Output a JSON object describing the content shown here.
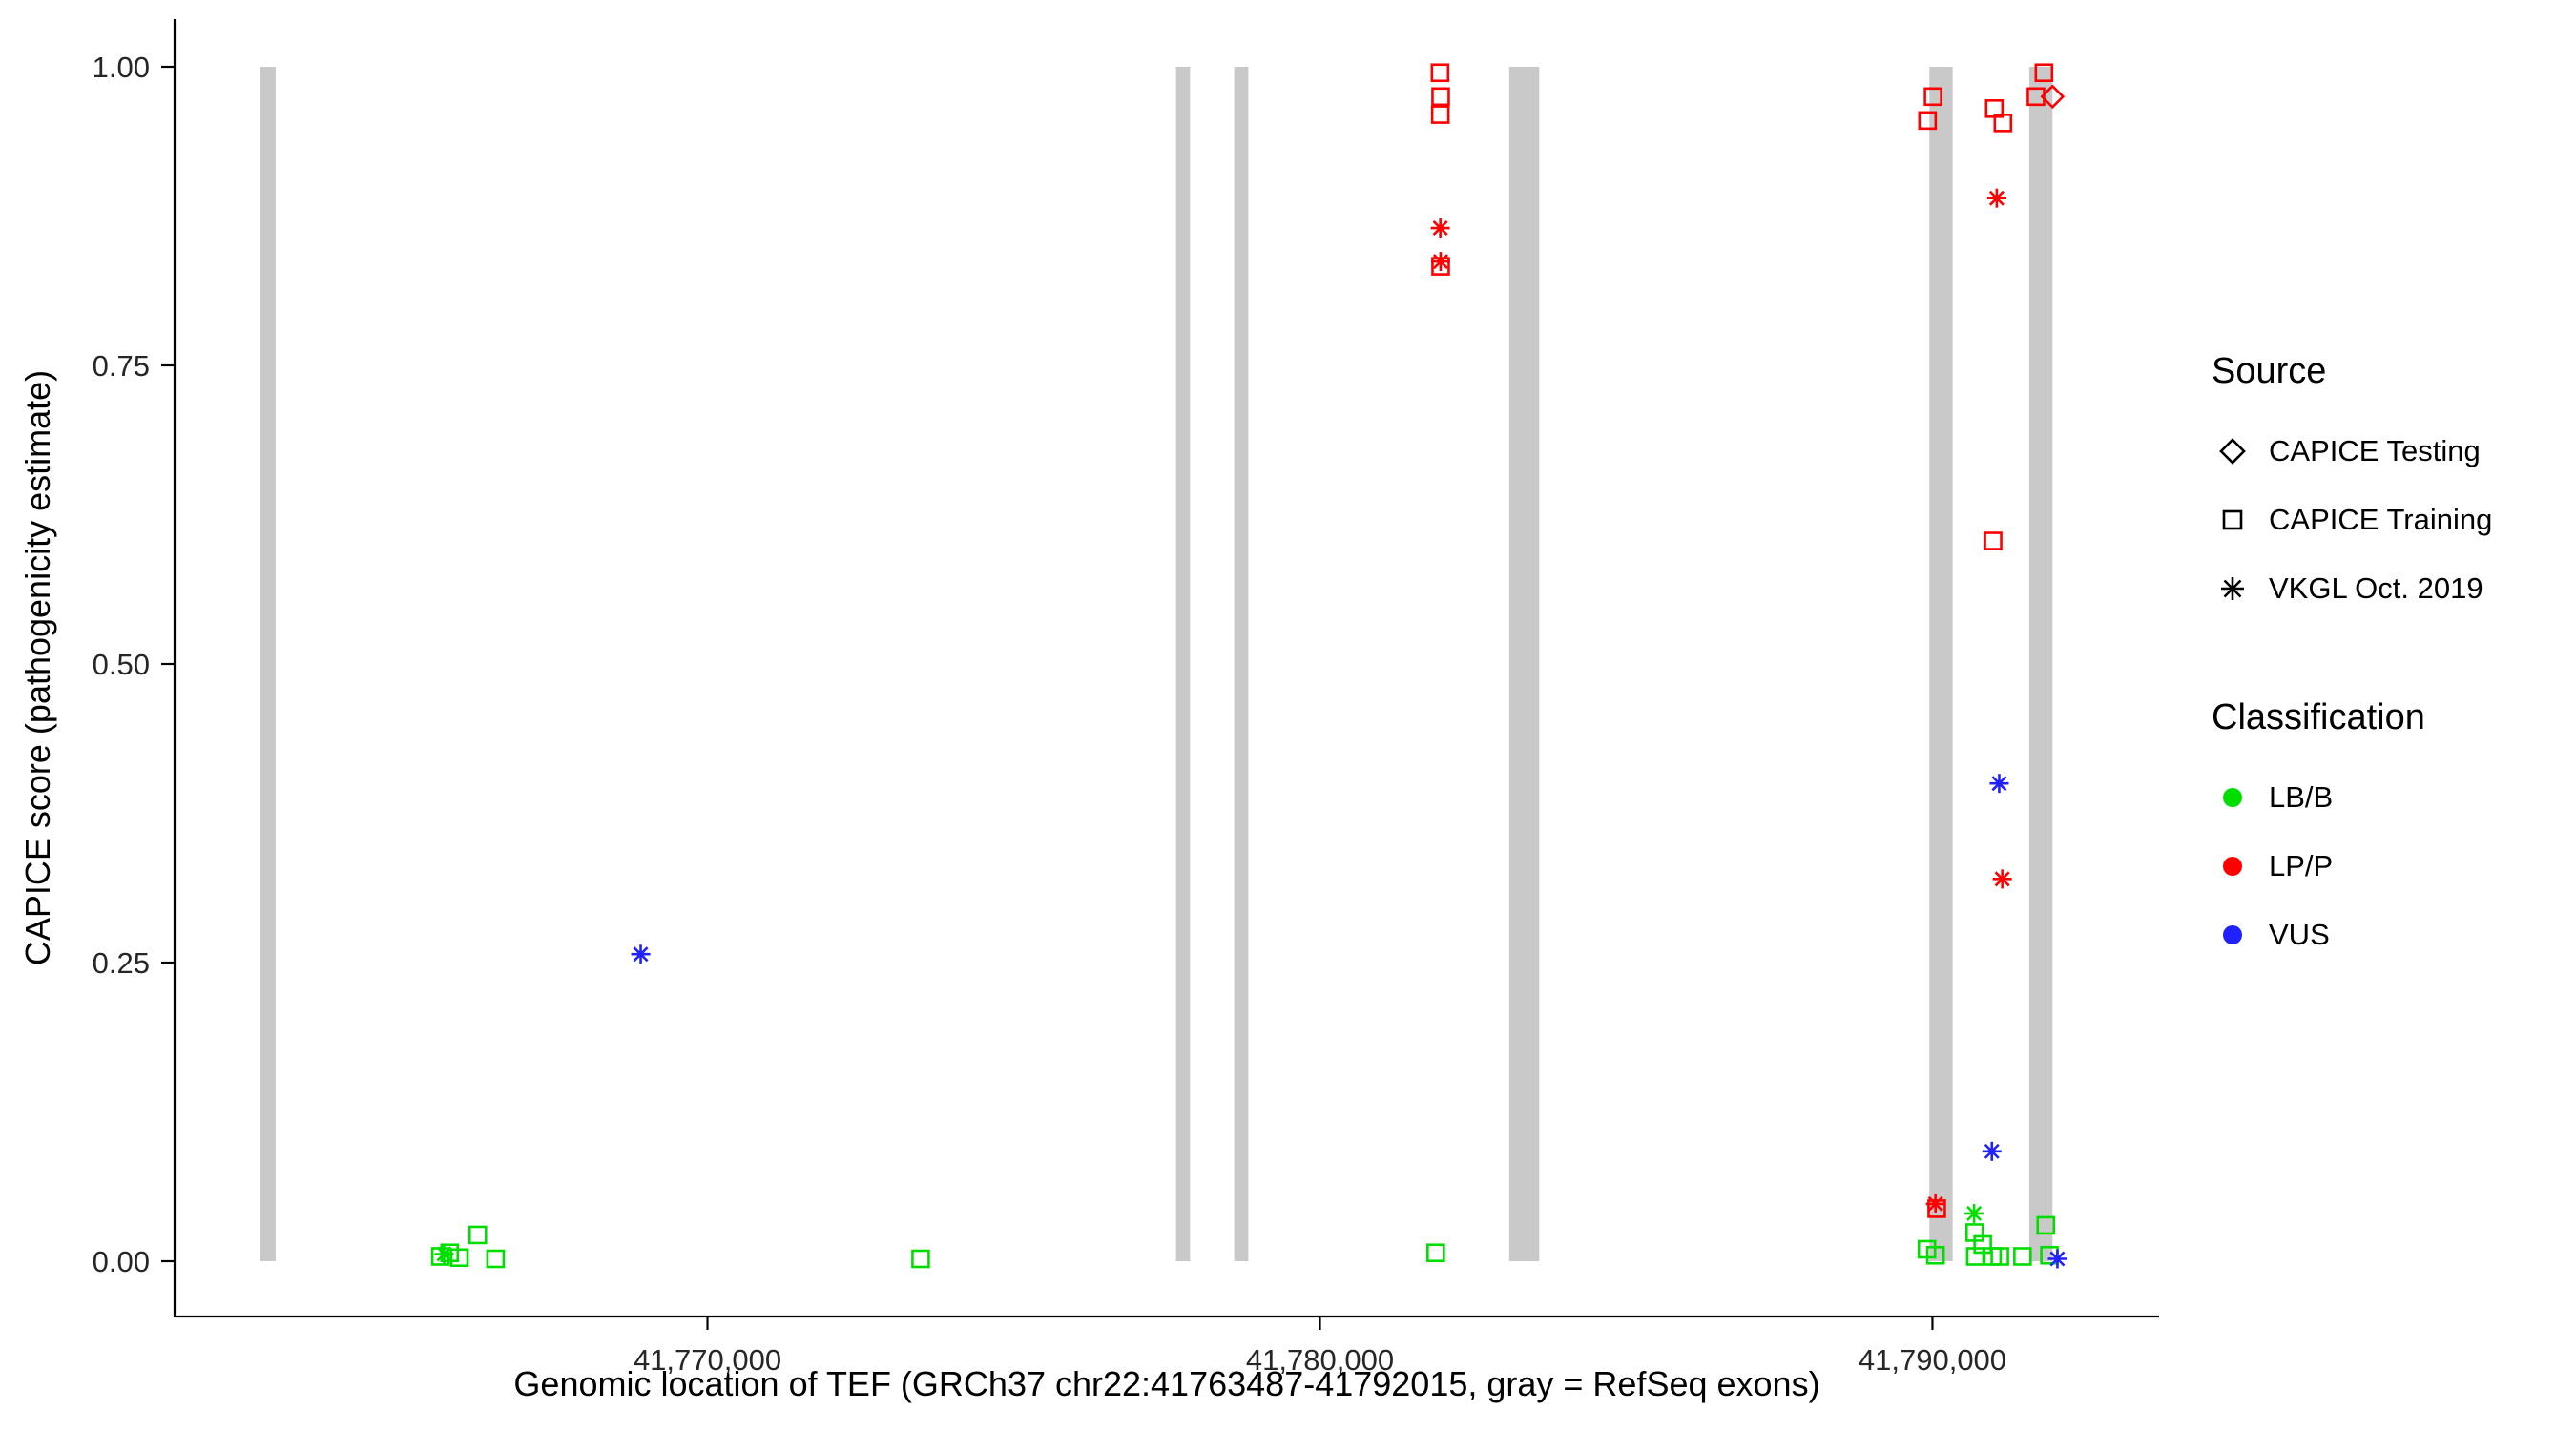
{
  "chart_data": {
    "type": "scatter",
    "title": "",
    "xlabel": "Genomic location of TEF (GRCh37 chr22:41763487-41792015, gray = RefSeq exons)",
    "ylabel": "CAPICE score (pathogenicity estimate)",
    "xlim": [
      41761300,
      41793700
    ],
    "ylim": [
      0,
      1.0
    ],
    "grid": false,
    "legend_position": "right",
    "x_ticks": [
      {
        "value": 41770000,
        "label": "41,770,000"
      },
      {
        "value": 41780000,
        "label": "41,780,000"
      },
      {
        "value": 41790000,
        "label": "41,790,000"
      }
    ],
    "y_ticks": [
      {
        "value": 0.0,
        "label": "0.00"
      },
      {
        "value": 0.25,
        "label": "0.25"
      },
      {
        "value": 0.5,
        "label": "0.50"
      },
      {
        "value": 0.75,
        "label": "0.75"
      },
      {
        "value": 1.0,
        "label": "1.00"
      }
    ],
    "exon_color": "#C9C9C9",
    "exons": [
      {
        "start": 41762700,
        "end": 41762950
      },
      {
        "start": 41777650,
        "end": 41777880
      },
      {
        "start": 41778600,
        "end": 41778830
      },
      {
        "start": 41783090,
        "end": 41783580
      },
      {
        "start": 41789950,
        "end": 41790330
      },
      {
        "start": 41791580,
        "end": 41791960
      }
    ],
    "colors": {
      "LB/B": "#00DE00",
      "LP/P": "#FF0000",
      "VUS": "#2121FF"
    },
    "points": [
      {
        "x": 41765640,
        "y": 0.004,
        "source": "CAPICE Training",
        "class": "LB/B"
      },
      {
        "x": 41765790,
        "y": 0.007,
        "source": "CAPICE Training",
        "class": "LB/B"
      },
      {
        "x": 41765700,
        "y": 0.006,
        "source": "VKGL Oct. 2019",
        "class": "LB/B"
      },
      {
        "x": 41765950,
        "y": 0.003,
        "source": "CAPICE Training",
        "class": "LB/B"
      },
      {
        "x": 41766250,
        "y": 0.022,
        "source": "CAPICE Training",
        "class": "LB/B"
      },
      {
        "x": 41766540,
        "y": 0.002,
        "source": "CAPICE Training",
        "class": "LB/B"
      },
      {
        "x": 41768910,
        "y": 0.257,
        "source": "VKGL Oct. 2019",
        "class": "VUS"
      },
      {
        "x": 41773480,
        "y": 0.002,
        "source": "CAPICE Training",
        "class": "LB/B"
      },
      {
        "x": 41781890,
        "y": 0.007,
        "source": "CAPICE Training",
        "class": "LB/B"
      },
      {
        "x": 41781960,
        "y": 0.995,
        "source": "CAPICE Training",
        "class": "LP/P"
      },
      {
        "x": 41781970,
        "y": 0.975,
        "source": "CAPICE Training",
        "class": "LP/P"
      },
      {
        "x": 41781965,
        "y": 0.96,
        "source": "CAPICE Training",
        "class": "LP/P"
      },
      {
        "x": 41781965,
        "y": 0.865,
        "source": "VKGL Oct. 2019",
        "class": "LP/P"
      },
      {
        "x": 41781970,
        "y": 0.837,
        "source": "VKGL Oct. 2019",
        "class": "LP/P"
      },
      {
        "x": 41781970,
        "y": 0.833,
        "source": "CAPICE Training",
        "class": "LP/P"
      },
      {
        "x": 41789920,
        "y": 0.955,
        "source": "CAPICE Training",
        "class": "LP/P"
      },
      {
        "x": 41790010,
        "y": 0.975,
        "source": "CAPICE Training",
        "class": "LP/P"
      },
      {
        "x": 41791010,
        "y": 0.965,
        "source": "CAPICE Training",
        "class": "LP/P"
      },
      {
        "x": 41791150,
        "y": 0.953,
        "source": "CAPICE Training",
        "class": "LP/P"
      },
      {
        "x": 41791690,
        "y": 0.975,
        "source": "CAPICE Training",
        "class": "LP/P"
      },
      {
        "x": 41791820,
        "y": 0.995,
        "source": "CAPICE Training",
        "class": "LP/P"
      },
      {
        "x": 41791960,
        "y": 0.975,
        "source": "CAPICE Testing",
        "class": "LP/P"
      },
      {
        "x": 41791050,
        "y": 0.89,
        "source": "VKGL Oct. 2019",
        "class": "LP/P"
      },
      {
        "x": 41790990,
        "y": 0.603,
        "source": "CAPICE Training",
        "class": "LP/P"
      },
      {
        "x": 41791090,
        "y": 0.4,
        "source": "VKGL Oct. 2019",
        "class": "VUS"
      },
      {
        "x": 41791140,
        "y": 0.32,
        "source": "VKGL Oct. 2019",
        "class": "LP/P"
      },
      {
        "x": 41790970,
        "y": 0.092,
        "source": "VKGL Oct. 2019",
        "class": "VUS"
      },
      {
        "x": 41790050,
        "y": 0.048,
        "source": "VKGL Oct. 2019",
        "class": "LP/P"
      },
      {
        "x": 41790070,
        "y": 0.044,
        "source": "CAPICE Training",
        "class": "LP/P"
      },
      {
        "x": 41790680,
        "y": 0.04,
        "source": "VKGL Oct. 2019",
        "class": "LB/B"
      },
      {
        "x": 41789910,
        "y": 0.01,
        "source": "CAPICE Training",
        "class": "LB/B"
      },
      {
        "x": 41790050,
        "y": 0.005,
        "source": "CAPICE Training",
        "class": "LB/B"
      },
      {
        "x": 41790690,
        "y": 0.024,
        "source": "CAPICE Training",
        "class": "LB/B"
      },
      {
        "x": 41790820,
        "y": 0.014,
        "source": "CAPICE Training",
        "class": "LB/B"
      },
      {
        "x": 41790700,
        "y": 0.004,
        "source": "CAPICE Training",
        "class": "LB/B"
      },
      {
        "x": 41790980,
        "y": 0.004,
        "source": "CAPICE Training",
        "class": "LB/B"
      },
      {
        "x": 41791100,
        "y": 0.004,
        "source": "CAPICE Training",
        "class": "LB/B"
      },
      {
        "x": 41791470,
        "y": 0.004,
        "source": "CAPICE Training",
        "class": "LB/B"
      },
      {
        "x": 41791850,
        "y": 0.03,
        "source": "CAPICE Training",
        "class": "LB/B"
      },
      {
        "x": 41791910,
        "y": 0.005,
        "source": "CAPICE Training",
        "class": "LB/B"
      },
      {
        "x": 41792040,
        "y": 0.002,
        "source": "VKGL Oct. 2019",
        "class": "VUS"
      }
    ]
  },
  "legend": {
    "source": {
      "title": "Source",
      "items": [
        {
          "label": "CAPICE Testing",
          "shape": "diamond"
        },
        {
          "label": "CAPICE Training",
          "shape": "square"
        },
        {
          "label": "VKGL Oct. 2019",
          "shape": "asterisk"
        }
      ]
    },
    "classification": {
      "title": "Classification",
      "items": [
        {
          "label": "LB/B",
          "color": "#00DE00"
        },
        {
          "label": "LP/P",
          "color": "#FF0000"
        },
        {
          "label": "VUS",
          "color": "#2121FF"
        }
      ]
    }
  }
}
